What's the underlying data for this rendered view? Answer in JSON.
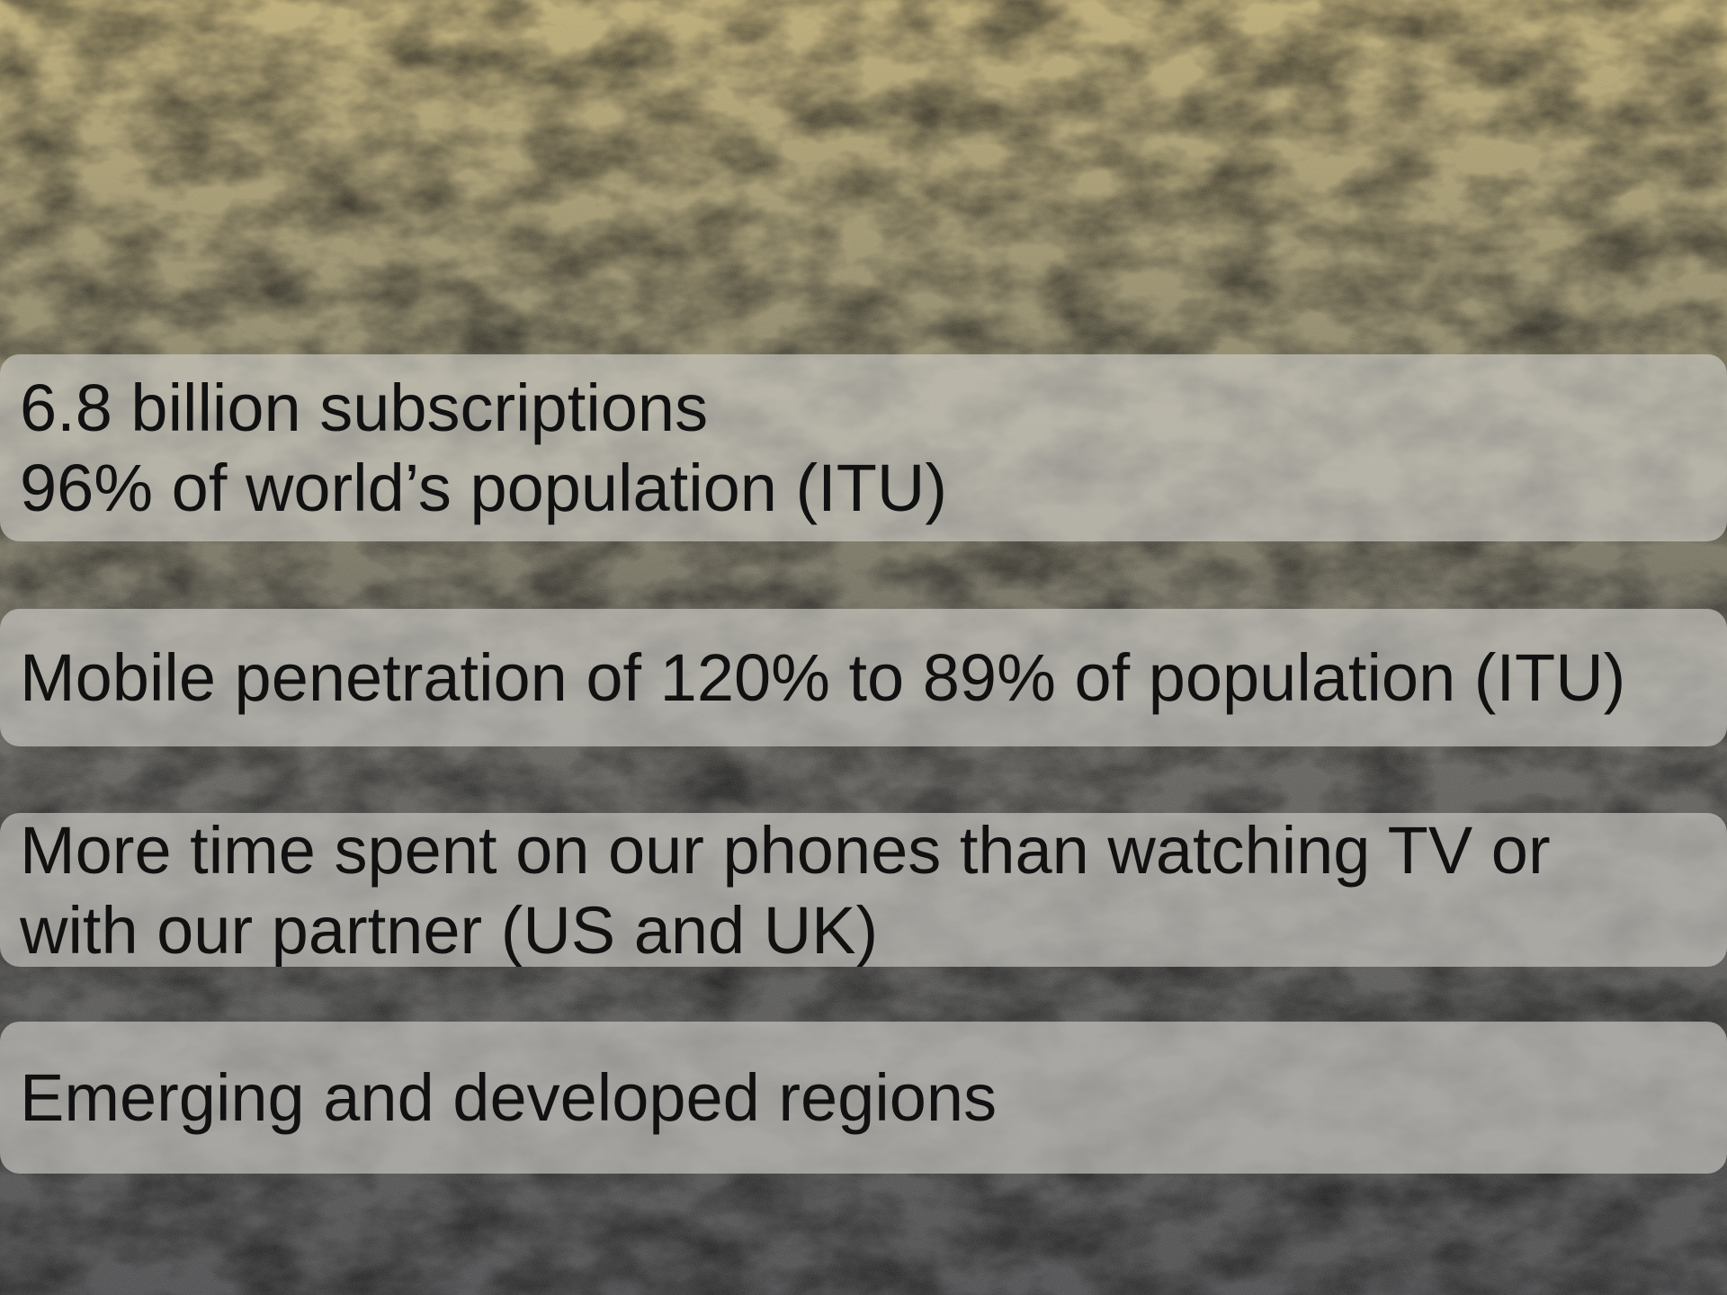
{
  "bullets": [
    {
      "lines": [
        "6.8 billion subscriptions",
        "96% of world’s population  (ITU)"
      ]
    },
    {
      "lines": [
        "Mobile penetration of 120% to 89% of population (ITU)"
      ]
    },
    {
      "lines": [
        "More time spent on our phones than watching TV or",
        "with our partner (US and UK)"
      ]
    },
    {
      "lines": [
        "Emerging and developed regions"
      ]
    }
  ]
}
